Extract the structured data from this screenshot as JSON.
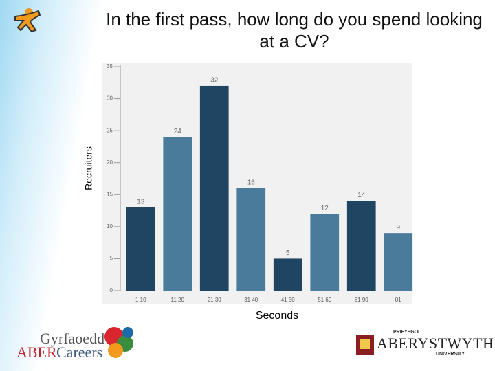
{
  "chart_data": {
    "type": "bar",
    "title": "In the first pass, how long do you spend looking at a CV?",
    "y_label": "Recruiters",
    "x_label": "Seconds",
    "categories": [
      "1 10",
      "11 20",
      "21 30",
      "31 40",
      "41 50",
      "51 60",
      "61 90",
      "01"
    ],
    "values": [
      13,
      24,
      32,
      16,
      5,
      12,
      14,
      9
    ],
    "colors": [
      "#1f4562",
      "#4b7b9b",
      "#1f4562",
      "#4b7b9b",
      "#1f4562",
      "#4b7b9b",
      "#1f4562",
      "#4b7b9b"
    ],
    "ylim": [
      0,
      35
    ],
    "yticks": [
      0,
      5,
      10,
      15,
      20,
      25,
      30,
      35
    ],
    "grid": false
  },
  "logos": {
    "careers_top": "Gyrfaoedd",
    "careers_aber": "ABER",
    "careers_bottom": "Careers",
    "uni_top": "PRIFYSGOL",
    "uni_name": "ABERYSTWYTH",
    "uni_bottom": "UNIVERSITY"
  }
}
